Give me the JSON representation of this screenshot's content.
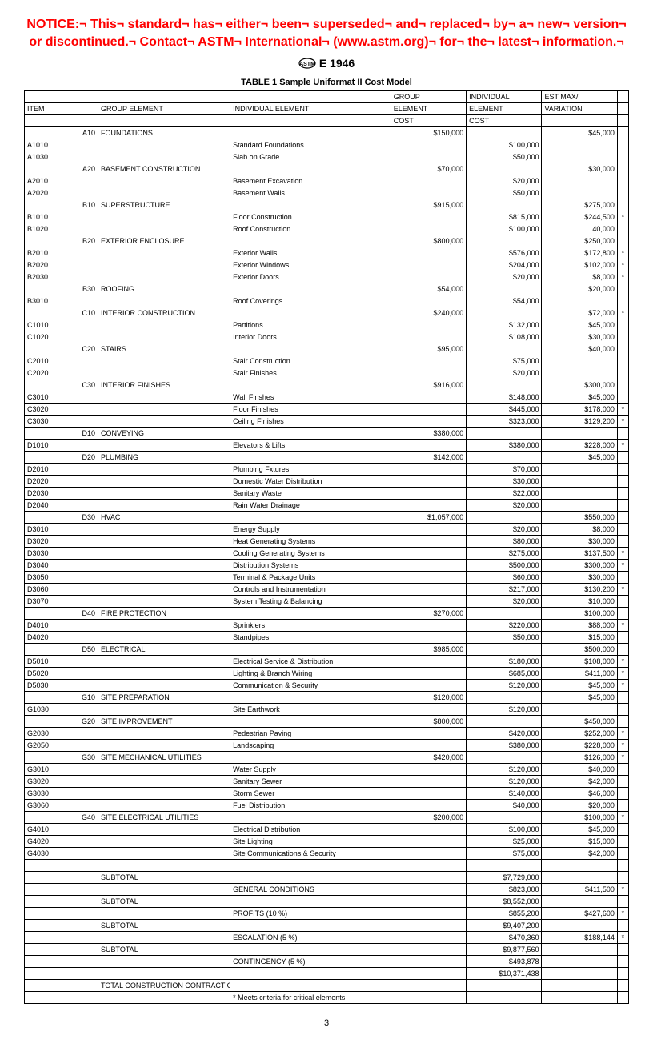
{
  "notice": "NOTICE:¬ This¬ standard¬ has¬ either¬ been¬ superseded¬ and¬ replaced¬ by¬ a¬ new¬ version¬ or discontinued.¬ Contact¬ ASTM¬ International¬ (www.astm.org)¬ for¬ the¬ latest¬ information.¬",
  "designation": "E 1946",
  "table_title": "TABLE 1  Sample Uniformat II Cost Model",
  "headers": {
    "item": "ITEM",
    "group_element": "GROUP ELEMENT",
    "individual_element": "INDIVIDUAL ELEMENT",
    "group_top": "GROUP",
    "group_mid": "ELEMENT",
    "group_bot": "COST",
    "ind_top": "INDIVIDUAL",
    "ind_mid": "ELEMENT",
    "ind_bot": "COST",
    "est_top": "EST MAX/",
    "est_mid": "VARIATION"
  },
  "rows": [
    {
      "gcode": "A10",
      "gelem": "FOUNDATIONS",
      "gcost": "$150,000",
      "var": "$45,000"
    },
    {
      "item": "A1010",
      "ielem": "Standard Foundations",
      "icost": "$100,000"
    },
    {
      "item": "A1030",
      "ielem": "Slab on Grade",
      "icost": "$50,000"
    },
    {
      "gcode": "A20",
      "gelem": "BASEMENT CONSTRUCTION",
      "gcost": "$70,000",
      "var": "$30,000"
    },
    {
      "item": "A2010",
      "ielem": "Basement Excavation",
      "icost": "$20,000"
    },
    {
      "item": "A2020",
      "ielem": "Basement Walls",
      "icost": "$50,000"
    },
    {
      "gcode": "B10",
      "gelem": "SUPERSTRUCTURE",
      "gcost": "$915,000",
      "var": "$275,000"
    },
    {
      "item": "B1010",
      "ielem": "Floor Construction",
      "icost": "$815,000",
      "var": "$244,500",
      "star": "*"
    },
    {
      "item": "B1020",
      "ielem": "Roof Construction",
      "icost": "$100,000",
      "var": "40,000"
    },
    {
      "gcode": "B20",
      "gelem": "EXTERIOR ENCLOSURE",
      "gcost": "$800,000",
      "var": "$250,000"
    },
    {
      "item": "B2010",
      "ielem": "Exterior Walls",
      "icost": "$576,000",
      "var": "$172,800",
      "star": "*"
    },
    {
      "item": "B2020",
      "ielem": "Exterior Windows",
      "icost": "$204,000",
      "var": "$102,000",
      "star": "*"
    },
    {
      "item": "B2030",
      "ielem": "Exterior Doors",
      "icost": "$20,000",
      "var": "$8,000",
      "star": "*"
    },
    {
      "gcode": "B30",
      "gelem": "ROOFING",
      "gcost": "$54,000",
      "var": "$20,000"
    },
    {
      "item": "B3010",
      "ielem": "Roof Coverings",
      "icost": "$54,000"
    },
    {
      "gcode": "C10",
      "gelem": "INTERIOR CONSTRUCTION",
      "gcost": "$240,000",
      "var": "$72,000",
      "star": "*"
    },
    {
      "item": "C1010",
      "ielem": "Partitions",
      "icost": "$132,000",
      "var": "$45,000"
    },
    {
      "item": "C1020",
      "ielem": "Interior Doors",
      "icost": "$108,000",
      "var": "$30,000"
    },
    {
      "gcode": "C20",
      "gelem": "STAIRS",
      "gcost": "$95,000",
      "var": "$40,000"
    },
    {
      "item": "C2010",
      "ielem": "Stair Construction",
      "icost": "$75,000"
    },
    {
      "item": "C2020",
      "ielem": "Stair Finishes",
      "icost": "$20,000"
    },
    {
      "gcode": "C30",
      "gelem": "INTERIOR FINISHES",
      "gcost": "$916,000",
      "var": "$300,000"
    },
    {
      "item": "C3010",
      "ielem": "Wall Finshes",
      "icost": "$148,000",
      "var": "$45,000"
    },
    {
      "item": "C3020",
      "ielem": "Floor Finishes",
      "icost": "$445,000",
      "var": "$178,000",
      "star": "*"
    },
    {
      "item": "C3030",
      "ielem": "Ceiling Finishes",
      "icost": "$323,000",
      "var": "$129,200",
      "star": "*"
    },
    {
      "gcode": "D10",
      "gelem": "CONVEYING",
      "gcost": "$380,000"
    },
    {
      "item": "D1010",
      "ielem": "Elevators & Lifts",
      "icost": "$380,000",
      "var": "$228,000",
      "star": "*"
    },
    {
      "gcode": "D20",
      "gelem": "PLUMBING",
      "gcost": "$142,000",
      "var": "$45,000"
    },
    {
      "item": "D2010",
      "ielem": "Plumbing Fxtures",
      "icost": "$70,000"
    },
    {
      "item": "D2020",
      "ielem": "Domestic Water Distribution",
      "icost": "$30,000"
    },
    {
      "item": "D2030",
      "ielem": "Sanitary Waste",
      "icost": "$22,000"
    },
    {
      "item": "D2040",
      "ielem": "Rain Water Drainage",
      "icost": "$20,000"
    },
    {
      "gcode": "D30",
      "gelem": "HVAC",
      "gcost": "$1,057,000",
      "var": "$550,000"
    },
    {
      "item": "D3010",
      "ielem": "Energy Supply",
      "icost": "$20,000",
      "var": "$8,000"
    },
    {
      "item": "D3020",
      "ielem": "Heat Generating Systems",
      "icost": "$80,000",
      "var": "$30,000"
    },
    {
      "item": "D3030",
      "ielem": "Cooling Generating Systems",
      "icost": "$275,000",
      "var": "$137,500",
      "star": "*"
    },
    {
      "item": "D3040",
      "ielem": "Distribution Systems",
      "icost": "$500,000",
      "var": "$300,000",
      "star": "*"
    },
    {
      "item": "D3050",
      "ielem": "Terminal & Package Units",
      "icost": "$60,000",
      "var": "$30,000"
    },
    {
      "item": "D3060",
      "ielem": "Controls and Instrumentation",
      "icost": "$217,000",
      "var": "$130,200",
      "star": "*"
    },
    {
      "item": "D3070",
      "ielem": "System Testing & Balancing",
      "icost": "$20,000",
      "var": "$10,000"
    },
    {
      "gcode": "D40",
      "gelem": "FIRE PROTECTION",
      "gcost": "$270,000",
      "var": "$100,000"
    },
    {
      "item": "D4010",
      "ielem": "Sprinklers",
      "icost": "$220,000",
      "var": "$88,000",
      "star": "*"
    },
    {
      "item": "D4020",
      "ielem": "Standpipes",
      "icost": "$50,000",
      "var": "$15,000"
    },
    {
      "gcode": "D50",
      "gelem": "ELECTRICAL",
      "gcost": "$985,000",
      "var": "$500,000"
    },
    {
      "item": "D5010",
      "ielem": "Electrical Service & Distribution",
      "icost": "$180,000",
      "var": "$108,000",
      "star": "*"
    },
    {
      "item": "D5020",
      "ielem": "Lighting & Branch Wiring",
      "icost": "$685,000",
      "var": "$411,000",
      "star": "*"
    },
    {
      "item": "D5030",
      "ielem": "Communication & Security",
      "icost": "$120,000",
      "var": "$45,000",
      "star": "*"
    },
    {
      "gcode": "G10",
      "gelem": "SITE PREPARATION",
      "gcost": "$120,000",
      "var": "$45,000"
    },
    {
      "item": "G1030",
      "ielem": "Site Earthwork",
      "icost": "$120,000"
    },
    {
      "gcode": "G20",
      "gelem": "SITE IMPROVEMENT",
      "gcost": "$800,000",
      "var": "$450,000"
    },
    {
      "item": "G2030",
      "ielem": "Pedestrian Paving",
      "icost": "$420,000",
      "var": "$252,000",
      "star": "*"
    },
    {
      "item": "G2050",
      "ielem": "Landscaping",
      "icost": "$380,000",
      "var": "$228,000",
      "star": "*"
    },
    {
      "gcode": "G30",
      "gelem": "SITE MECHANICAL UTILITIES",
      "gcost": "$420,000",
      "var": "$126,000",
      "star": "*"
    },
    {
      "item": "G3010",
      "ielem": "Water Supply",
      "icost": "$120,000",
      "var": "$40,000"
    },
    {
      "item": "G3020",
      "ielem": "Sanitary Sewer",
      "icost": "$120,000",
      "var": "$42,000"
    },
    {
      "item": "G3030",
      "ielem": "Storm Sewer",
      "icost": "$140,000",
      "var": "$46,000"
    },
    {
      "item": "G3060",
      "ielem": "Fuel Distribution",
      "icost": "$40,000",
      "var": "$20,000"
    },
    {
      "gcode": "G40",
      "gelem": "SITE ELECTRICAL UTILITIES",
      "gcost": "$200,000",
      "var": "$100,000",
      "star": "*"
    },
    {
      "item": "G4010",
      "ielem": "Electrical Distribution",
      "icost": "$100,000",
      "var": "$45,000"
    },
    {
      "item": "G4020",
      "ielem": "Site Lighting",
      "icost": "$25,000",
      "var": "$15,000"
    },
    {
      "item": "G4030",
      "ielem": "Site Communications & Security",
      "icost": "$75,000",
      "var": "$42,000"
    },
    {
      "blank": true
    },
    {
      "gelem": "SUBTOTAL",
      "icost": "$7,729,000"
    },
    {
      "ielem": "GENERAL CONDITIONS",
      "icost": "$823,000",
      "var": "$411,500",
      "star": "*"
    },
    {
      "gelem": "SUBTOTAL",
      "icost": "$8,552,000"
    },
    {
      "ielem": "PROFITS (10 %)",
      "icost": "$855,200",
      "var": "$427,600",
      "star": "*"
    },
    {
      "gelem": "SUBTOTAL",
      "icost": "$9,407,200"
    },
    {
      "ielem": "ESCALATION (5 %)",
      "icost": "$470,360",
      "var": "$188,144",
      "star": "*"
    },
    {
      "gelem": "SUBTOTAL",
      "icost": "$9,877,560"
    },
    {
      "ielem": "CONTINGENCY (5 %)",
      "icost": "$493,878"
    },
    {
      "icost": "$10,371,438"
    },
    {
      "gelem": "TOTAL CONSTRUCTION CONTRACT COST"
    },
    {
      "ielem": "* Meets criteria for critical elements"
    }
  ],
  "page_number": "3"
}
